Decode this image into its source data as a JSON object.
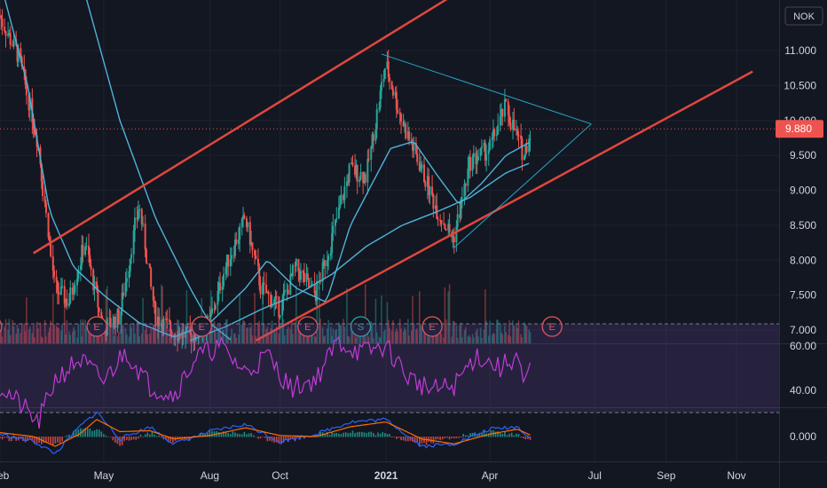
{
  "chart_data": {
    "type": "candlestick",
    "currency": "NOK",
    "x_axis": {
      "ticks": [
        {
          "label": "Feb",
          "date": "2020-02-01"
        },
        {
          "label": "May",
          "date": "2020-05-01"
        },
        {
          "label": "Aug",
          "date": "2020-08-01"
        },
        {
          "label": "Oct",
          "date": "2020-10-01"
        },
        {
          "label": "2021",
          "date": "2021-01-01",
          "bold": true
        },
        {
          "label": "Apr",
          "date": "2021-04-01"
        },
        {
          "label": "Jul",
          "date": "2021-07-01"
        },
        {
          "label": "Sep",
          "date": "2021-09-01"
        },
        {
          "label": "Nov",
          "date": "2021-11-01"
        }
      ]
    },
    "price_pane": {
      "yticks": [
        "11.000",
        "10.500",
        "10.000",
        "9.500",
        "9.000",
        "8.500",
        "8.000",
        "7.500",
        "7.000"
      ],
      "ylim": [
        6.9,
        11.65
      ],
      "last_price": 9.88,
      "last_price_label": "9.880",
      "last_price_color": "#ef5350",
      "price_series": [
        {
          "date": "2020-02-01",
          "value": 11.5
        },
        {
          "date": "2020-02-18",
          "value": 10.9
        },
        {
          "date": "2020-03-05",
          "value": 9.7
        },
        {
          "date": "2020-03-20",
          "value": 7.6
        },
        {
          "date": "2020-04-01",
          "value": 7.4
        },
        {
          "date": "2020-04-15",
          "value": 8.25
        },
        {
          "date": "2020-05-01",
          "value": 7.0
        },
        {
          "date": "2020-05-15",
          "value": 7.2
        },
        {
          "date": "2020-06-01",
          "value": 8.8
        },
        {
          "date": "2020-06-15",
          "value": 7.2
        },
        {
          "date": "2020-07-01",
          "value": 6.98
        },
        {
          "date": "2020-07-15",
          "value": 6.9
        },
        {
          "date": "2020-08-01",
          "value": 7.1
        },
        {
          "date": "2020-08-15",
          "value": 7.9
        },
        {
          "date": "2020-09-01",
          "value": 8.6
        },
        {
          "date": "2020-09-15",
          "value": 7.6
        },
        {
          "date": "2020-10-01",
          "value": 7.3
        },
        {
          "date": "2020-10-15",
          "value": 7.9
        },
        {
          "date": "2020-11-01",
          "value": 7.5
        },
        {
          "date": "2020-11-15",
          "value": 8.3
        },
        {
          "date": "2020-12-01",
          "value": 9.3
        },
        {
          "date": "2020-12-15",
          "value": 9.2
        },
        {
          "date": "2021-01-01",
          "value": 10.8
        },
        {
          "date": "2021-01-15",
          "value": 10.0
        },
        {
          "date": "2021-02-01",
          "value": 9.3
        },
        {
          "date": "2021-02-15",
          "value": 8.7
        },
        {
          "date": "2021-03-01",
          "value": 8.3
        },
        {
          "date": "2021-03-15",
          "value": 9.4
        },
        {
          "date": "2021-04-01",
          "value": 9.6
        },
        {
          "date": "2021-04-15",
          "value": 10.2
        },
        {
          "date": "2021-05-01",
          "value": 9.5
        },
        {
          "date": "2021-05-07",
          "value": 9.88
        }
      ],
      "moving_averages": [
        {
          "name": "",
          "color": "#4fb3d9",
          "points": [
            {
              "date": "2020-02-01",
              "value": 12.0
            },
            {
              "date": "2020-02-25",
              "value": 10.5
            },
            {
              "date": "2020-03-15",
              "value": 8.7
            },
            {
              "date": "2020-04-05",
              "value": 7.9
            },
            {
              "date": "2020-05-01",
              "value": 7.5
            },
            {
              "date": "2020-06-01",
              "value": 7.1
            },
            {
              "date": "2020-07-01",
              "value": 6.9
            },
            {
              "date": "2020-08-01",
              "value": 7.1
            },
            {
              "date": "2020-09-01",
              "value": 7.6
            },
            {
              "date": "2020-09-20",
              "value": 8.0
            },
            {
              "date": "2020-10-15",
              "value": 7.6
            },
            {
              "date": "2020-11-10",
              "value": 7.4
            },
            {
              "date": "2020-12-01",
              "value": 8.5
            },
            {
              "date": "2020-12-20",
              "value": 9.1
            },
            {
              "date": "2021-01-05",
              "value": 9.6
            },
            {
              "date": "2021-01-25",
              "value": 9.7
            },
            {
              "date": "2021-02-15",
              "value": 9.2
            },
            {
              "date": "2021-03-05",
              "value": 8.8
            },
            {
              "date": "2021-03-25",
              "value": 9.1
            },
            {
              "date": "2021-04-15",
              "value": 9.5
            },
            {
              "date": "2021-05-07",
              "value": 9.7
            }
          ]
        },
        {
          "name": "",
          "color": "#4fb3d9",
          "points": [
            {
              "date": "2020-07-15",
              "value": 6.85
            },
            {
              "date": "2020-08-15",
              "value": 7.05
            },
            {
              "date": "2020-09-15",
              "value": 7.3
            },
            {
              "date": "2020-10-15",
              "value": 7.5
            },
            {
              "date": "2020-11-15",
              "value": 7.8
            },
            {
              "date": "2020-12-15",
              "value": 8.2
            },
            {
              "date": "2021-01-15",
              "value": 8.5
            },
            {
              "date": "2021-02-15",
              "value": 8.7
            },
            {
              "date": "2021-03-15",
              "value": 8.9
            },
            {
              "date": "2021-04-15",
              "value": 9.25
            },
            {
              "date": "2021-05-07",
              "value": 9.4
            }
          ]
        },
        {
          "name": "",
          "color": "#4fb3d9",
          "points": [
            {
              "date": "2020-04-15",
              "value": 11.8
            },
            {
              "date": "2020-05-15",
              "value": 10.0
            },
            {
              "date": "2020-06-15",
              "value": 8.6
            },
            {
              "date": "2020-07-15",
              "value": 7.6
            },
            {
              "date": "2020-08-01",
              "value": 7.1
            },
            {
              "date": "2020-08-20",
              "value": 6.85
            }
          ]
        }
      ],
      "trend_lines": [
        {
          "color": "#e0473e",
          "from": {
            "date": "2020-03-01",
            "value": 8.1
          },
          "to": {
            "date": "2021-03-01",
            "value": 11.8
          }
        },
        {
          "color": "#e0473e",
          "from": {
            "date": "2020-09-10",
            "value": 6.85
          },
          "to": {
            "date": "2021-11-15",
            "value": 10.7
          }
        },
        {
          "color": "#26a6c6",
          "from": {
            "date": "2020-12-28",
            "value": 10.95
          },
          "to": {
            "date": "2021-06-28",
            "value": 9.95
          }
        },
        {
          "color": "#26a6c6",
          "from": {
            "date": "2021-03-01",
            "value": 8.18
          },
          "to": {
            "date": "2021-06-28",
            "value": 9.95
          }
        }
      ],
      "events": [
        {
          "label": "E",
          "date": "2020-01-25",
          "color": "#ef5350"
        },
        {
          "label": "E",
          "date": "2020-04-25",
          "color": "#ef5350"
        },
        {
          "label": "E",
          "date": "2020-07-25",
          "color": "#ef5350"
        },
        {
          "label": "E",
          "date": "2020-10-25",
          "color": "#ef5350"
        },
        {
          "label": "S",
          "date": "2020-12-10",
          "color": "#26a69a"
        },
        {
          "label": "E",
          "date": "2021-02-10",
          "color": "#ef5350"
        },
        {
          "label": "E",
          "date": "2021-05-25",
          "color": "#ef5350"
        }
      ]
    },
    "rsi_pane": {
      "yticks": [
        "60.00",
        "40.00"
      ],
      "ylim": [
        25,
        62
      ],
      "upper_band": 70,
      "lower_band": 30,
      "series": [
        {
          "date": "2020-02-01",
          "value": 42
        },
        {
          "date": "2020-02-20",
          "value": 33
        },
        {
          "date": "2020-03-05",
          "value": 25
        },
        {
          "date": "2020-03-20",
          "value": 45
        },
        {
          "date": "2020-04-10",
          "value": 54
        },
        {
          "date": "2020-05-01",
          "value": 44
        },
        {
          "date": "2020-05-20",
          "value": 58
        },
        {
          "date": "2020-06-10",
          "value": 42
        },
        {
          "date": "2020-07-01",
          "value": 38
        },
        {
          "date": "2020-07-20",
          "value": 55
        },
        {
          "date": "2020-08-10",
          "value": 60
        },
        {
          "date": "2020-09-01",
          "value": 48
        },
        {
          "date": "2020-09-20",
          "value": 56
        },
        {
          "date": "2020-10-10",
          "value": 41
        },
        {
          "date": "2020-11-01",
          "value": 45
        },
        {
          "date": "2020-11-20",
          "value": 62
        },
        {
          "date": "2020-12-10",
          "value": 57
        },
        {
          "date": "2021-01-01",
          "value": 60
        },
        {
          "date": "2021-01-20",
          "value": 46
        },
        {
          "date": "2021-02-10",
          "value": 40
        },
        {
          "date": "2021-03-01",
          "value": 42
        },
        {
          "date": "2021-03-20",
          "value": 56
        },
        {
          "date": "2021-04-10",
          "value": 50
        },
        {
          "date": "2021-04-25",
          "value": 56
        },
        {
          "date": "2021-05-01",
          "value": 40
        },
        {
          "date": "2021-05-07",
          "value": 52
        }
      ]
    },
    "macd_pane": {
      "yticks": [
        "0.000"
      ],
      "ylim": [
        -0.55,
        0.55
      ],
      "macd_color": "#2962ff",
      "signal_color": "#ff6d00",
      "macd": [
        {
          "date": "2020-02-01",
          "value": 0.05
        },
        {
          "date": "2020-03-01",
          "value": -0.1
        },
        {
          "date": "2020-03-20",
          "value": -0.35
        },
        {
          "date": "2020-04-10",
          "value": 0.2
        },
        {
          "date": "2020-04-25",
          "value": 0.5
        },
        {
          "date": "2020-05-15",
          "value": -0.05
        },
        {
          "date": "2020-06-10",
          "value": 0.2
        },
        {
          "date": "2020-07-01",
          "value": -0.15
        },
        {
          "date": "2020-08-01",
          "value": 0.1
        },
        {
          "date": "2020-09-01",
          "value": 0.25
        },
        {
          "date": "2020-10-01",
          "value": -0.1
        },
        {
          "date": "2020-11-01",
          "value": 0.05
        },
        {
          "date": "2020-12-01",
          "value": 0.3
        },
        {
          "date": "2021-01-01",
          "value": 0.35
        },
        {
          "date": "2021-02-01",
          "value": -0.2
        },
        {
          "date": "2021-03-01",
          "value": -0.15
        },
        {
          "date": "2021-04-01",
          "value": 0.15
        },
        {
          "date": "2021-04-25",
          "value": 0.2
        },
        {
          "date": "2021-05-07",
          "value": -0.05
        }
      ],
      "signal": [
        {
          "date": "2020-02-01",
          "value": 0.08
        },
        {
          "date": "2020-03-01",
          "value": 0.0
        },
        {
          "date": "2020-03-20",
          "value": -0.2
        },
        {
          "date": "2020-04-10",
          "value": 0.05
        },
        {
          "date": "2020-04-25",
          "value": 0.35
        },
        {
          "date": "2020-05-15",
          "value": 0.1
        },
        {
          "date": "2020-06-10",
          "value": 0.12
        },
        {
          "date": "2020-07-01",
          "value": -0.05
        },
        {
          "date": "2020-08-01",
          "value": 0.02
        },
        {
          "date": "2020-09-01",
          "value": 0.18
        },
        {
          "date": "2020-10-01",
          "value": 0.02
        },
        {
          "date": "2020-11-01",
          "value": 0.0
        },
        {
          "date": "2020-12-01",
          "value": 0.2
        },
        {
          "date": "2021-01-01",
          "value": 0.3
        },
        {
          "date": "2021-02-01",
          "value": -0.05
        },
        {
          "date": "2021-03-01",
          "value": -0.15
        },
        {
          "date": "2021-04-01",
          "value": 0.05
        },
        {
          "date": "2021-04-25",
          "value": 0.15
        },
        {
          "date": "2021-05-07",
          "value": 0.02
        }
      ]
    }
  }
}
